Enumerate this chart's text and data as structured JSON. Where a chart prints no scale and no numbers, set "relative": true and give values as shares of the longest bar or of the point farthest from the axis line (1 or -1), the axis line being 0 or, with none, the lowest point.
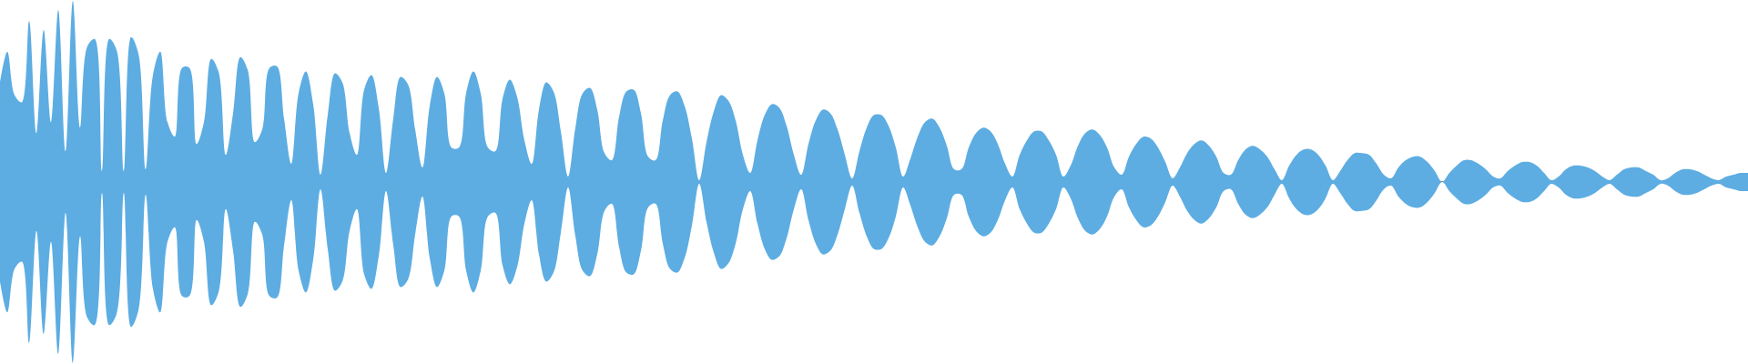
{
  "chart_data": {
    "type": "area",
    "relative": true,
    "tick_labels": false,
    "categories": [
      null,
      null,
      null,
      null,
      null,
      null,
      null,
      null,
      null,
      null,
      null,
      null,
      null,
      null,
      null,
      null,
      null,
      null,
      null,
      null,
      null,
      null,
      null,
      null,
      null,
      null,
      null,
      null,
      null,
      null,
      null,
      null,
      null,
      null,
      null,
      null,
      null,
      null,
      null,
      null,
      null,
      null,
      null,
      null,
      null,
      null,
      null,
      null,
      null,
      null,
      null,
      null,
      null,
      null,
      null,
      null,
      null,
      null,
      null,
      null,
      null,
      null,
      null,
      null,
      null,
      null,
      null,
      null,
      null,
      null,
      null,
      null,
      null,
      null,
      null,
      null,
      null,
      null,
      null,
      null,
      null,
      null,
      null,
      null,
      null,
      null,
      null,
      null,
      null,
      null,
      null,
      null,
      null,
      null,
      null,
      null,
      null,
      null,
      null,
      null,
      null,
      null,
      null,
      null,
      null,
      null,
      null,
      null,
      null,
      null,
      null,
      null,
      null,
      null,
      null,
      null,
      null,
      null,
      null,
      null,
      null,
      null,
      null,
      null,
      null,
      null,
      null,
      null,
      null,
      null,
      null,
      null,
      null,
      null,
      null,
      null,
      null,
      null,
      null,
      null,
      null,
      null,
      null,
      null,
      null,
      null,
      null,
      null,
      null,
      null,
      null,
      null,
      null,
      null,
      null,
      null,
      null,
      null,
      null,
      null,
      null,
      null,
      null,
      null,
      null,
      null,
      null,
      null,
      null,
      null,
      null,
      null,
      null,
      null,
      null,
      null,
      null,
      null,
      null,
      null,
      null,
      null,
      null,
      null,
      null,
      null,
      null,
      null,
      null,
      null,
      null,
      null,
      null,
      null,
      null,
      null,
      null,
      null,
      null,
      null,
      null,
      null,
      null,
      null,
      null,
      null,
      null,
      null,
      null,
      null,
      null,
      null,
      null,
      null,
      null,
      null,
      null,
      null,
      null,
      null,
      null,
      null,
      null,
      null,
      null,
      null,
      null,
      null,
      null,
      null,
      null,
      null,
      null,
      null,
      null,
      null,
      null,
      null,
      null,
      null,
      null
    ],
    "series": [
      {
        "color": "#5dade2",
        "values": [
          0.55,
          0.72,
          0.48,
          0.44,
          0.89,
          0.27,
          0.84,
          0.33,
          0.95,
          0.17,
          1,
          0.3,
          0.75,
          0.79,
          0.06,
          0.79,
          0.73,
          0.06,
          0.8,
          0.71,
          0.07,
          0.59,
          0.72,
          0.33,
          0.25,
          0.63,
          0.63,
          0.21,
          0.33,
          0.68,
          0.61,
          0.15,
          0.38,
          0.69,
          0.62,
          0.22,
          0.29,
          0.63,
          0.64,
          0.35,
          0.1,
          0.49,
          0.61,
          0.43,
          0.04,
          0.37,
          0.6,
          0.55,
          0.27,
          0.15,
          0.51,
          0.59,
          0.41,
          0.05,
          0.35,
          0.58,
          0.54,
          0.29,
          0.08,
          0.42,
          0.58,
          0.49,
          0.19,
          0.19,
          0.49,
          0.61,
          0.49,
          0.19,
          0.17,
          0.46,
          0.565,
          0.47,
          0.23,
          0.1,
          0.4,
          0.55,
          0.5,
          0.28,
          0.03,
          0.3,
          0.49,
          0.52,
          0.4,
          0.16,
          0.12,
          0.36,
          0.5,
          0.51,
          0.38,
          0.14,
          0.12,
          0.34,
          0.48,
          0.5,
          0.42,
          0.24,
          0.01,
          0.22,
          0.39,
          0.48,
          0.45,
          0.34,
          0.15,
          0.05,
          0.23,
          0.37,
          0.43,
          0.41,
          0.31,
          0.15,
          0.04,
          0.21,
          0.34,
          0.4,
          0.38,
          0.29,
          0.15,
          0.02,
          0.17,
          0.3,
          0.37,
          0.37,
          0.31,
          0.19,
          0.03,
          0.13,
          0.25,
          0.33,
          0.35,
          0.3,
          0.2,
          0.07,
          0.07,
          0.19,
          0.27,
          0.3,
          0.28,
          0.21,
          0.1,
          0.03,
          0.15,
          0.23,
          0.28,
          0.28,
          0.23,
          0.15,
          0.03,
          0.09,
          0.2,
          0.27,
          0.29,
          0.26,
          0.19,
          0.08,
          0.04,
          0.14,
          0.21,
          0.25,
          0.24,
          0.19,
          0.11,
          0.02,
          0.08,
          0.16,
          0.21,
          0.23,
          0.2,
          0.14,
          0.05,
          0.04,
          0.12,
          0.18,
          0.2,
          0.18,
          0.14,
          0.07,
          0.01,
          0.09,
          0.15,
          0.18,
          0.18,
          0.15,
          0.09,
          0.01,
          0.06,
          0.12,
          0.16,
          0.16,
          0.15,
          0.1,
          0.04,
          0.02,
          0.08,
          0.12,
          0.14,
          0.14,
          0.11,
          0.06,
          0,
          0.05,
          0.09,
          0.12,
          0.12,
          0.1,
          0.07,
          0.03,
          0.02,
          0.06,
          0.09,
          0.11,
          0.11,
          0.09,
          0.05,
          0.01,
          0.03,
          0.07,
          0.09,
          0.09,
          0.08,
          0.06,
          0.03,
          0.01,
          0.04,
          0.07,
          0.08,
          0.08,
          0.06,
          0.04,
          0.01,
          0.02,
          0.05,
          0.07,
          0.07,
          0.06,
          0.04,
          0.02,
          0.01,
          0.03,
          0.04,
          0.05,
          0.05
        ]
      },
      {
        "color": "#5dade2",
        "values": [
          -0.55,
          -0.72,
          -0.48,
          -0.44,
          -0.89,
          -0.27,
          -0.84,
          -0.33,
          -0.95,
          -0.17,
          -1,
          -0.3,
          -0.75,
          -0.79,
          -0.06,
          -0.79,
          -0.73,
          -0.06,
          -0.8,
          -0.71,
          -0.07,
          -0.59,
          -0.72,
          -0.33,
          -0.25,
          -0.63,
          -0.63,
          -0.21,
          -0.33,
          -0.68,
          -0.61,
          -0.15,
          -0.38,
          -0.69,
          -0.62,
          -0.22,
          -0.29,
          -0.63,
          -0.64,
          -0.35,
          -0.1,
          -0.49,
          -0.61,
          -0.43,
          -0.04,
          -0.37,
          -0.6,
          -0.55,
          -0.27,
          -0.15,
          -0.51,
          -0.59,
          -0.41,
          -0.05,
          -0.35,
          -0.58,
          -0.54,
          -0.29,
          -0.08,
          -0.42,
          -0.58,
          -0.49,
          -0.19,
          -0.19,
          -0.49,
          -0.61,
          -0.49,
          -0.19,
          -0.17,
          -0.46,
          -0.565,
          -0.47,
          -0.23,
          -0.1,
          -0.4,
          -0.55,
          -0.5,
          -0.28,
          -0.03,
          -0.3,
          -0.49,
          -0.52,
          -0.4,
          -0.16,
          -0.12,
          -0.36,
          -0.5,
          -0.51,
          -0.38,
          -0.14,
          -0.12,
          -0.34,
          -0.48,
          -0.5,
          -0.42,
          -0.24,
          -0.01,
          -0.22,
          -0.39,
          -0.48,
          -0.45,
          -0.34,
          -0.15,
          -0.05,
          -0.23,
          -0.37,
          -0.43,
          -0.41,
          -0.31,
          -0.15,
          -0.04,
          -0.21,
          -0.34,
          -0.4,
          -0.38,
          -0.29,
          -0.15,
          -0.02,
          -0.17,
          -0.3,
          -0.37,
          -0.37,
          -0.31,
          -0.19,
          -0.03,
          -0.13,
          -0.25,
          -0.33,
          -0.35,
          -0.3,
          -0.2,
          -0.07,
          -0.07,
          -0.19,
          -0.27,
          -0.3,
          -0.28,
          -0.21,
          -0.1,
          -0.03,
          -0.15,
          -0.23,
          -0.28,
          -0.28,
          -0.23,
          -0.15,
          -0.03,
          -0.09,
          -0.2,
          -0.27,
          -0.29,
          -0.26,
          -0.19,
          -0.08,
          -0.04,
          -0.14,
          -0.21,
          -0.25,
          -0.24,
          -0.19,
          -0.11,
          -0.02,
          -0.08,
          -0.16,
          -0.21,
          -0.23,
          -0.2,
          -0.14,
          -0.05,
          -0.04,
          -0.12,
          -0.18,
          -0.2,
          -0.18,
          -0.14,
          -0.07,
          -0.01,
          -0.09,
          -0.15,
          -0.18,
          -0.18,
          -0.15,
          -0.09,
          -0.01,
          -0.06,
          -0.12,
          -0.16,
          -0.16,
          -0.15,
          -0.1,
          -0.04,
          -0.02,
          -0.08,
          -0.12,
          -0.14,
          -0.14,
          -0.11,
          -0.06,
          0,
          -0.05,
          -0.09,
          -0.12,
          -0.12,
          -0.1,
          -0.07,
          -0.03,
          -0.02,
          -0.06,
          -0.09,
          -0.11,
          -0.11,
          -0.09,
          -0.05,
          -0.01,
          -0.03,
          -0.07,
          -0.09,
          -0.09,
          -0.08,
          -0.06,
          -0.03,
          -0.01,
          -0.04,
          -0.07,
          -0.08,
          -0.08,
          -0.06,
          -0.04,
          -0.01,
          -0.02,
          -0.05,
          -0.07,
          -0.07,
          -0.06,
          -0.04,
          -0.02,
          -0.01,
          -0.03,
          -0.04,
          -0.05,
          -0.05
        ]
      }
    ]
  }
}
